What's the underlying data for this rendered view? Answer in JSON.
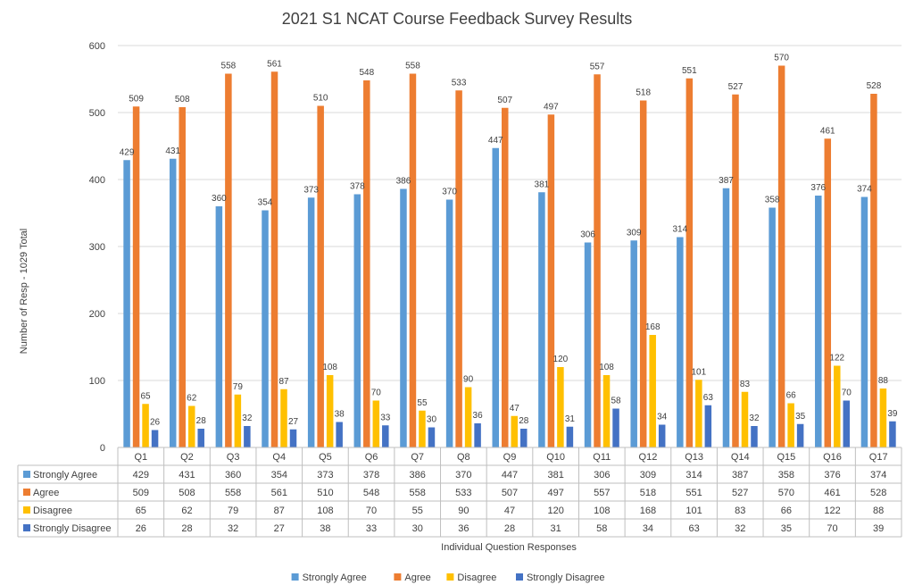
{
  "chart_data": {
    "type": "bar",
    "title": "2021 S1 NCAT Course Feedback Survey Results",
    "xlabel": "Individual Question Responses",
    "ylabel": "Number of Resp - 1029 Total",
    "ylim": [
      0,
      600
    ],
    "yticks": [
      0,
      100,
      200,
      300,
      400,
      500,
      600
    ],
    "grid": true,
    "legend_position": "bottom",
    "data_table": true,
    "categories": [
      "Q1",
      "Q2",
      "Q3",
      "Q4",
      "Q5",
      "Q6",
      "Q7",
      "Q8",
      "Q9",
      "Q10",
      "Q11",
      "Q12",
      "Q13",
      "Q14",
      "Q15",
      "Q16",
      "Q17"
    ],
    "series": [
      {
        "name": "Strongly Agree",
        "color": "#5B9BD5",
        "values": [
          429,
          431,
          360,
          354,
          373,
          378,
          386,
          370,
          447,
          381,
          306,
          309,
          314,
          387,
          358,
          376,
          374
        ]
      },
      {
        "name": "Agree",
        "color": "#ED7D31",
        "values": [
          509,
          508,
          558,
          561,
          510,
          548,
          558,
          533,
          507,
          497,
          557,
          518,
          551,
          527,
          570,
          461,
          528
        ]
      },
      {
        "name": "Disagree",
        "color": "#FFC000",
        "values": [
          65,
          62,
          79,
          87,
          108,
          70,
          55,
          90,
          47,
          120,
          108,
          168,
          101,
          83,
          66,
          122,
          88
        ]
      },
      {
        "name": "Strongly Disagree",
        "color": "#4472C4",
        "values": [
          26,
          28,
          32,
          27,
          38,
          33,
          30,
          36,
          28,
          31,
          58,
          34,
          63,
          32,
          35,
          70,
          39
        ]
      }
    ]
  }
}
